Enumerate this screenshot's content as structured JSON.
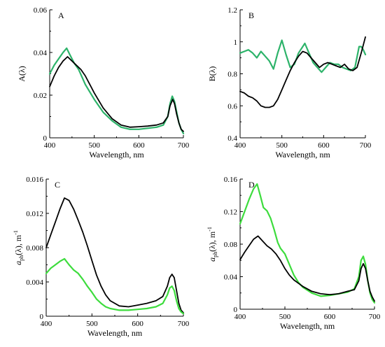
{
  "colors": {
    "black": "#000000",
    "green": "#2db36a",
    "green_bright": "#3ddc3d"
  },
  "chart_data": [
    {
      "type": "line",
      "panel": "A",
      "xlabel": "Wavelength, nm",
      "ylabel": "A(λ)",
      "xlim": [
        400,
        700
      ],
      "ylim": [
        0,
        0.06
      ],
      "xticks": [
        400,
        500,
        600,
        700
      ],
      "yticks": [
        0,
        0.02,
        0.04,
        0.06
      ],
      "ytick_labels": [
        "0",
        "0.02",
        "0.04",
        "0.06"
      ],
      "series": [
        {
          "color": "green",
          "x": [
            400,
            410,
            420,
            430,
            438,
            445,
            455,
            465,
            480,
            500,
            520,
            540,
            560,
            580,
            600,
            620,
            640,
            655,
            665,
            670,
            675,
            680,
            685,
            690,
            695,
            700
          ],
          "y": [
            0.03,
            0.034,
            0.037,
            0.04,
            0.042,
            0.039,
            0.035,
            0.032,
            0.025,
            0.018,
            0.012,
            0.008,
            0.005,
            0.004,
            0.004,
            0.0045,
            0.005,
            0.006,
            0.01,
            0.016,
            0.0195,
            0.017,
            0.012,
            0.007,
            0.004,
            0.002
          ]
        },
        {
          "color": "black",
          "x": [
            400,
            410,
            420,
            430,
            440,
            450,
            460,
            470,
            480,
            500,
            520,
            540,
            560,
            580,
            600,
            620,
            640,
            655,
            665,
            670,
            676,
            680,
            685,
            690,
            695,
            700
          ],
          "y": [
            0.024,
            0.029,
            0.033,
            0.036,
            0.038,
            0.036,
            0.034,
            0.032,
            0.029,
            0.021,
            0.014,
            0.009,
            0.006,
            0.005,
            0.0052,
            0.0055,
            0.006,
            0.007,
            0.01,
            0.015,
            0.018,
            0.016,
            0.011,
            0.007,
            0.004,
            0.003
          ]
        }
      ]
    },
    {
      "type": "line",
      "panel": "B",
      "xlabel": "Wavelength, nm",
      "ylabel": "B(λ)",
      "xlim": [
        400,
        700
      ],
      "ylim": [
        0.4,
        1.2
      ],
      "xticks": [
        400,
        500,
        600,
        700
      ],
      "yticks": [
        0.4,
        0.6,
        0.8,
        1.0,
        1.2
      ],
      "ytick_labels": [
        "0.4",
        "0.6",
        "0.8",
        "1",
        "1.2"
      ],
      "series": [
        {
          "color": "green",
          "x": [
            400,
            410,
            420,
            430,
            440,
            450,
            460,
            470,
            480,
            490,
            500,
            510,
            520,
            530,
            540,
            555,
            565,
            575,
            585,
            595,
            605,
            615,
            625,
            635,
            645,
            655,
            665,
            675,
            685,
            690,
            695,
            700
          ],
          "y": [
            0.93,
            0.94,
            0.95,
            0.93,
            0.9,
            0.94,
            0.91,
            0.88,
            0.83,
            0.93,
            1.01,
            0.92,
            0.84,
            0.86,
            0.93,
            0.99,
            0.93,
            0.87,
            0.84,
            0.81,
            0.84,
            0.87,
            0.86,
            0.86,
            0.84,
            0.83,
            0.82,
            0.84,
            0.97,
            0.97,
            0.95,
            0.92
          ]
        },
        {
          "color": "black",
          "x": [
            400,
            410,
            420,
            430,
            440,
            450,
            460,
            470,
            480,
            490,
            500,
            510,
            520,
            530,
            540,
            550,
            560,
            570,
            580,
            590,
            600,
            610,
            620,
            630,
            640,
            650,
            660,
            670,
            680,
            690,
            700
          ],
          "y": [
            0.69,
            0.68,
            0.66,
            0.65,
            0.63,
            0.6,
            0.59,
            0.59,
            0.6,
            0.64,
            0.7,
            0.76,
            0.82,
            0.87,
            0.91,
            0.94,
            0.93,
            0.9,
            0.87,
            0.84,
            0.86,
            0.87,
            0.86,
            0.85,
            0.84,
            0.86,
            0.83,
            0.82,
            0.84,
            0.93,
            1.03
          ]
        }
      ]
    },
    {
      "type": "line",
      "panel": "C",
      "xlabel": "Wavelength, nm",
      "ylabel": "aph(λ), m-1",
      "xlim": [
        400,
        700
      ],
      "ylim": [
        0,
        0.016
      ],
      "xticks": [
        400,
        500,
        600,
        700
      ],
      "yticks": [
        0,
        0.004,
        0.008,
        0.012,
        0.016
      ],
      "ytick_labels": [
        "0",
        "0.004",
        "0.008",
        "0.012",
        "0.016"
      ],
      "series": [
        {
          "color": "black",
          "x": [
            400,
            410,
            420,
            430,
            440,
            450,
            460,
            470,
            480,
            490,
            500,
            510,
            520,
            530,
            540,
            560,
            580,
            600,
            620,
            640,
            655,
            665,
            670,
            675,
            680,
            685,
            690,
            695,
            700
          ],
          "y": [
            0.008,
            0.0095,
            0.011,
            0.0125,
            0.0138,
            0.0135,
            0.0125,
            0.0112,
            0.0098,
            0.0082,
            0.0065,
            0.0048,
            0.0035,
            0.0025,
            0.0018,
            0.0012,
            0.0011,
            0.0013,
            0.0015,
            0.0018,
            0.0023,
            0.0035,
            0.0045,
            0.0049,
            0.0045,
            0.003,
            0.0015,
            0.0007,
            0.0004
          ]
        },
        {
          "color": "green_bright",
          "x": [
            400,
            410,
            420,
            430,
            440,
            450,
            460,
            470,
            480,
            490,
            500,
            510,
            520,
            530,
            540,
            560,
            580,
            600,
            620,
            640,
            655,
            665,
            670,
            675,
            680,
            685,
            690,
            695,
            700
          ],
          "y": [
            0.005,
            0.0056,
            0.006,
            0.0064,
            0.0067,
            0.006,
            0.0054,
            0.005,
            0.0043,
            0.0035,
            0.0028,
            0.002,
            0.0015,
            0.0011,
            0.0009,
            0.0007,
            0.0007,
            0.0008,
            0.0009,
            0.0011,
            0.0015,
            0.0025,
            0.0033,
            0.0035,
            0.003,
            0.0018,
            0.0009,
            0.0005,
            0.0003
          ]
        }
      ]
    },
    {
      "type": "line",
      "panel": "D",
      "xlabel": "Wavelength, nm",
      "ylabel": "aph(λ), m-1",
      "xlim": [
        400,
        700
      ],
      "ylim": [
        0,
        0.16
      ],
      "xticks": [
        400,
        500,
        600,
        700
      ],
      "yticks": [
        0,
        0.04,
        0.08,
        0.12,
        0.16
      ],
      "ytick_labels": [
        "0",
        "0.04",
        "0.08",
        "0.12",
        "0.16"
      ],
      "series": [
        {
          "color": "green_bright",
          "x": [
            400,
            410,
            420,
            430,
            438,
            445,
            452,
            460,
            468,
            476,
            484,
            490,
            500,
            510,
            520,
            530,
            540,
            560,
            580,
            600,
            620,
            640,
            655,
            665,
            670,
            675,
            680,
            685,
            690,
            695,
            700
          ],
          "y": [
            0.105,
            0.12,
            0.135,
            0.148,
            0.154,
            0.14,
            0.125,
            0.121,
            0.112,
            0.098,
            0.082,
            0.075,
            0.068,
            0.055,
            0.042,
            0.033,
            0.027,
            0.02,
            0.016,
            0.017,
            0.019,
            0.021,
            0.025,
            0.04,
            0.06,
            0.065,
            0.055,
            0.035,
            0.02,
            0.012,
            0.008
          ]
        },
        {
          "color": "black",
          "x": [
            400,
            410,
            420,
            430,
            440,
            450,
            460,
            470,
            480,
            490,
            500,
            510,
            520,
            530,
            540,
            560,
            580,
            600,
            620,
            640,
            655,
            665,
            670,
            675,
            680,
            685,
            690,
            695,
            700
          ],
          "y": [
            0.061,
            0.07,
            0.078,
            0.086,
            0.09,
            0.084,
            0.078,
            0.074,
            0.068,
            0.06,
            0.05,
            0.042,
            0.036,
            0.032,
            0.028,
            0.022,
            0.019,
            0.018,
            0.019,
            0.022,
            0.024,
            0.035,
            0.05,
            0.056,
            0.05,
            0.035,
            0.022,
            0.015,
            0.01
          ]
        }
      ]
    }
  ]
}
